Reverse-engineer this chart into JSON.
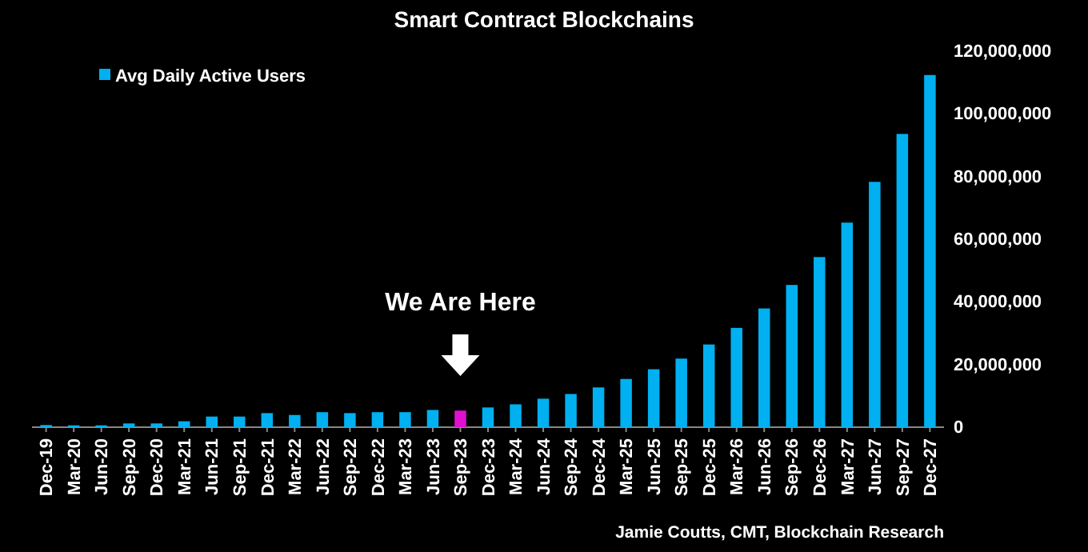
{
  "chart_data": {
    "type": "bar",
    "title": "Smart Contract Blockchains",
    "categories": [
      "Dec-19",
      "Mar-20",
      "Jun-20",
      "Sep-20",
      "Dec-20",
      "Mar-21",
      "Jun-21",
      "Sep-21",
      "Dec-21",
      "Mar-22",
      "Jun-22",
      "Sep-22",
      "Dec-22",
      "Mar-23",
      "Jun-23",
      "Sep-23",
      "Dec-23",
      "Mar-24",
      "Jun-24",
      "Sep-24",
      "Dec-24",
      "Mar-25",
      "Jun-25",
      "Sep-25",
      "Dec-25",
      "Mar-26",
      "Jun-26",
      "Sep-26",
      "Dec-26",
      "Mar-27",
      "Jun-27",
      "Sep-27",
      "Dec-27"
    ],
    "series": [
      {
        "name": "Avg Daily Active Users",
        "color": "#00b0f0",
        "colors": [
          "#00b0f0",
          "#00b0f0",
          "#00b0f0",
          "#00b0f0",
          "#00b0f0",
          "#00b0f0",
          "#00b0f0",
          "#00b0f0",
          "#00b0f0",
          "#00b0f0",
          "#00b0f0",
          "#00b0f0",
          "#00b0f0",
          "#00b0f0",
          "#00b0f0",
          "#e010d0",
          "#00b0f0",
          "#00b0f0",
          "#00b0f0",
          "#00b0f0",
          "#00b0f0",
          "#00b0f0",
          "#00b0f0",
          "#00b0f0",
          "#00b0f0",
          "#00b0f0",
          "#00b0f0",
          "#00b0f0",
          "#00b0f0",
          "#00b0f0",
          "#00b0f0",
          "#00b0f0",
          "#00b0f0"
        ],
        "values": [
          700000,
          600000,
          600000,
          1200000,
          1200000,
          1900000,
          3400000,
          3400000,
          4500000,
          3900000,
          4800000,
          4500000,
          4800000,
          4800000,
          5500000,
          5300000,
          6300000,
          7300000,
          9100000,
          10600000,
          12700000,
          15400000,
          18500000,
          21900000,
          26400000,
          31700000,
          37900000,
          45400000,
          54300000,
          65300000,
          78300000,
          93600000,
          112400000
        ]
      }
    ],
    "ylim": [
      0,
      120000000
    ],
    "yticks": [
      {
        "value": 0,
        "label": "0"
      },
      {
        "value": 20000000,
        "label": "20,000,000"
      },
      {
        "value": 40000000,
        "label": "40,000,000"
      },
      {
        "value": 60000000,
        "label": "60,000,000"
      },
      {
        "value": 80000000,
        "label": "80,000,000"
      },
      {
        "value": 100000000,
        "label": "100,000,000"
      },
      {
        "value": 120000000,
        "label": "120,000,000"
      }
    ],
    "grid": false,
    "legend": "top left",
    "annotations": [
      "We Are Here",
      "Jamie Coutts, CMT, Blockchain Research"
    ]
  }
}
